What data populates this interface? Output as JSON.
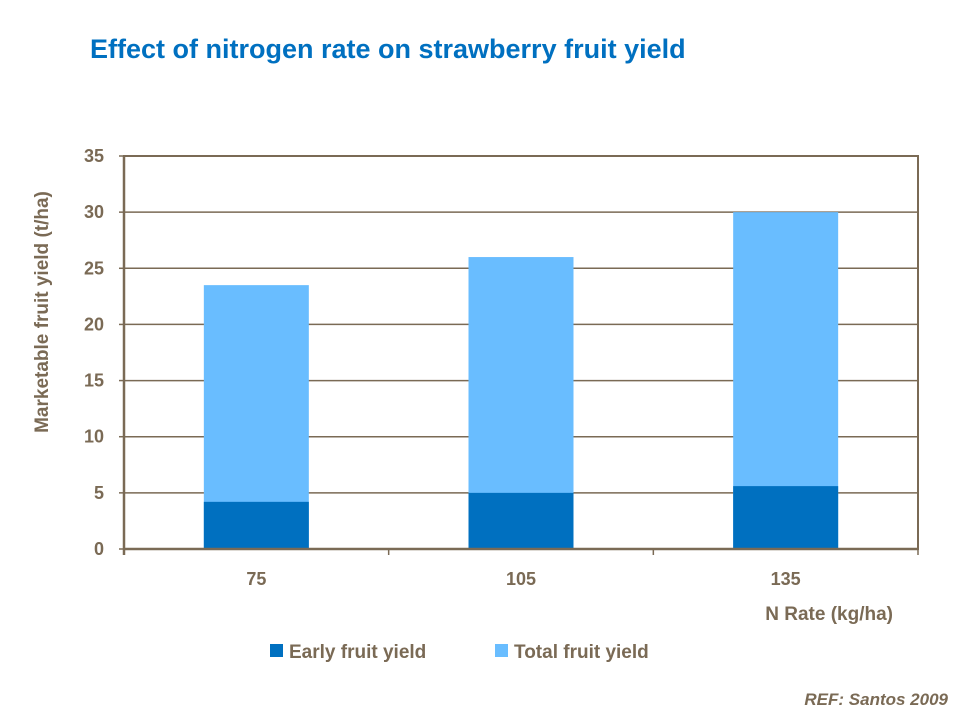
{
  "chart_data": {
    "type": "bar",
    "stacked": true,
    "title": "Effect of nitrogen rate on strawberry fruit yield",
    "xlabel": "N Rate (kg/ha)",
    "ylabel": "Marketable fruit yield (t/ha)",
    "categories": [
      "75",
      "105",
      "135"
    ],
    "series": [
      {
        "name": "Early fruit yield",
        "values": [
          4.2,
          5.0,
          5.6
        ],
        "color": "#0070c0"
      },
      {
        "name": "Total fruit yield",
        "values": [
          23.5,
          26.0,
          30.0
        ],
        "color": "#69bdff"
      }
    ],
    "ylim": [
      0,
      35
    ],
    "yticks": [
      "0",
      "5",
      "10",
      "15",
      "20",
      "25",
      "30",
      "35"
    ],
    "grid": true,
    "legend": "bottom"
  },
  "reference": "REF:  Santos 2009",
  "colors": {
    "title": "#0070c0",
    "axis": "#7a6a55"
  }
}
